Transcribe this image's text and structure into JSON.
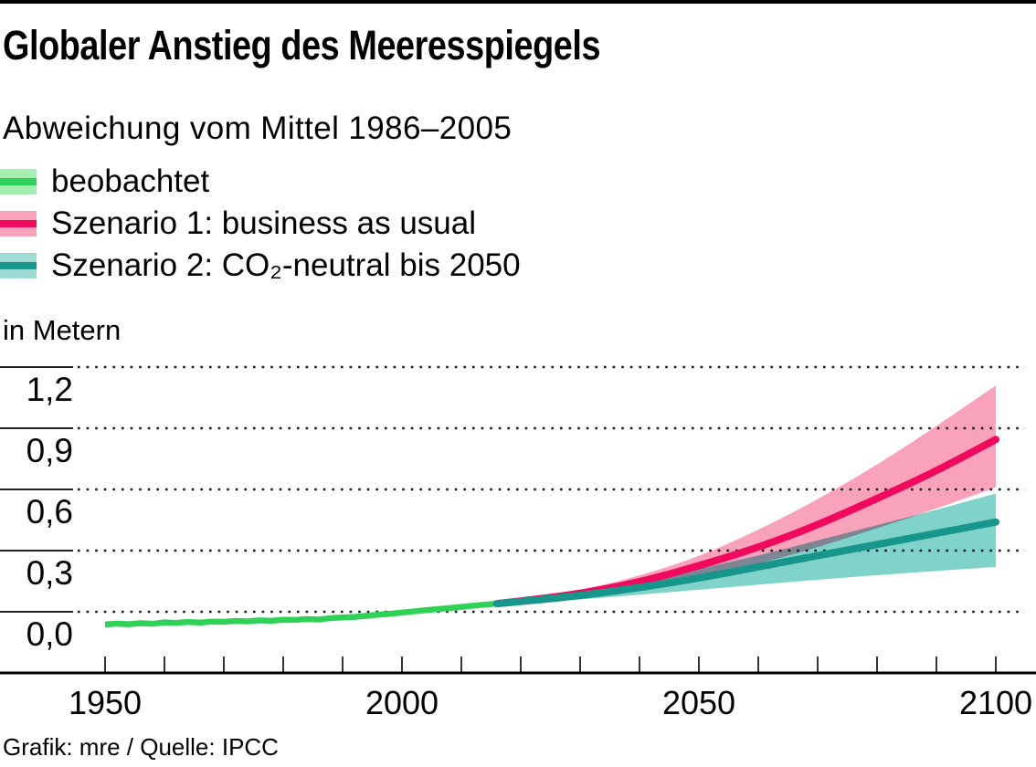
{
  "header": {
    "title": "Globaler Anstieg des Meeresspiegels",
    "subtitle": "Abweichung vom Mittel 1986–2005"
  },
  "axis": {
    "unit_label": "in Metern"
  },
  "footer": {
    "credit": "Grafik: mre / Quelle: IPCC"
  },
  "colors": {
    "top_rule": "#000000",
    "observed_line": "#2fd156",
    "observed_band": "#a6edb2",
    "scenario1_line": "#ef0a5d",
    "scenario1_band": "#f9a2bb",
    "scenario2_line": "#17968c",
    "scenario2_band": "#7fd3ca",
    "legend_scenario2_band": "#9edbd3",
    "grid_dots": "#1c1c1c",
    "axis_line": "#000000"
  },
  "legend": {
    "items": [
      {
        "id": "observed",
        "label": "beobachtet",
        "band_color": "#a6edb2",
        "line_color": "#2fd156"
      },
      {
        "id": "scenario1",
        "label": "Szenario 1: business as usual",
        "band_color": "#f9a2bb",
        "line_color": "#ef0a5d"
      },
      {
        "id": "scenario2",
        "label": "Szenario 2: CO₂-neutral bis 2050",
        "band_color": "#9edbd3",
        "line_color": "#17968c"
      }
    ]
  },
  "chart_data": {
    "type": "line",
    "title": "Globaler Anstieg des Meeresspiegels",
    "subtitle": "Abweichung vom Mittel 1986–2005",
    "ylabel": "in Metern",
    "xlim": [
      1950,
      2100
    ],
    "ylim_gridlines": [
      0.0,
      1.2
    ],
    "grid": "dotted-horizontal",
    "legend_position": "top-left",
    "y_ticks": [
      {
        "label": "1,2",
        "value": 1.2
      },
      {
        "label": "0,9",
        "value": 0.9
      },
      {
        "label": "0,6",
        "value": 0.6
      },
      {
        "label": "0,3",
        "value": 0.3
      },
      {
        "label": "0,0",
        "value": 0.0
      }
    ],
    "x_ticks_labeled": [
      {
        "label": "1950",
        "value": 1950
      },
      {
        "label": "2000",
        "value": 2000
      },
      {
        "label": "2050",
        "value": 2050
      },
      {
        "label": "2100",
        "value": 2100
      }
    ],
    "x_minor_tick_step": 10,
    "series": [
      {
        "name": "beobachtet",
        "role": "observed",
        "band_halfwidth": 0.012,
        "points": [
          [
            1950,
            -0.062
          ],
          [
            1952,
            -0.058
          ],
          [
            1954,
            -0.061
          ],
          [
            1956,
            -0.056
          ],
          [
            1958,
            -0.059
          ],
          [
            1960,
            -0.052
          ],
          [
            1962,
            -0.055
          ],
          [
            1964,
            -0.05
          ],
          [
            1966,
            -0.053
          ],
          [
            1968,
            -0.048
          ],
          [
            1970,
            -0.049
          ],
          [
            1972,
            -0.045
          ],
          [
            1974,
            -0.047
          ],
          [
            1976,
            -0.042
          ],
          [
            1978,
            -0.044
          ],
          [
            1980,
            -0.039
          ],
          [
            1982,
            -0.04
          ],
          [
            1984,
            -0.036
          ],
          [
            1986,
            -0.038
          ],
          [
            1988,
            -0.031
          ],
          [
            1990,
            -0.028
          ],
          [
            1992,
            -0.025
          ],
          [
            1994,
            -0.02
          ],
          [
            1996,
            -0.014
          ],
          [
            1998,
            -0.01
          ],
          [
            2000,
            -0.004
          ],
          [
            2002,
            0.002
          ],
          [
            2004,
            0.008
          ],
          [
            2006,
            0.013
          ],
          [
            2008,
            0.018
          ],
          [
            2010,
            0.024
          ],
          [
            2012,
            0.03
          ],
          [
            2014,
            0.035
          ],
          [
            2016,
            0.04
          ]
        ]
      },
      {
        "name": "Szenario 1: business as usual",
        "role": "scenario1",
        "median": [
          [
            2016,
            0.04
          ],
          [
            2020,
            0.052
          ],
          [
            2030,
            0.088
          ],
          [
            2040,
            0.145
          ],
          [
            2050,
            0.225
          ],
          [
            2060,
            0.315
          ],
          [
            2070,
            0.425
          ],
          [
            2080,
            0.555
          ],
          [
            2090,
            0.69
          ],
          [
            2100,
            0.845
          ]
        ],
        "upper": [
          [
            2016,
            0.046
          ],
          [
            2020,
            0.062
          ],
          [
            2030,
            0.105
          ],
          [
            2040,
            0.175
          ],
          [
            2050,
            0.27
          ],
          [
            2060,
            0.4
          ],
          [
            2070,
            0.55
          ],
          [
            2080,
            0.72
          ],
          [
            2090,
            0.91
          ],
          [
            2100,
            1.11
          ]
        ],
        "lower": [
          [
            2016,
            0.034
          ],
          [
            2020,
            0.044
          ],
          [
            2030,
            0.072
          ],
          [
            2040,
            0.112
          ],
          [
            2050,
            0.168
          ],
          [
            2060,
            0.235
          ],
          [
            2070,
            0.315
          ],
          [
            2080,
            0.41
          ],
          [
            2090,
            0.505
          ],
          [
            2100,
            0.61
          ]
        ]
      },
      {
        "name": "Szenario 2: CO₂-neutral bis 2050",
        "role": "scenario2",
        "median": [
          [
            2016,
            0.04
          ],
          [
            2020,
            0.05
          ],
          [
            2030,
            0.079
          ],
          [
            2040,
            0.118
          ],
          [
            2050,
            0.165
          ],
          [
            2060,
            0.22
          ],
          [
            2070,
            0.275
          ],
          [
            2080,
            0.33
          ],
          [
            2090,
            0.385
          ],
          [
            2100,
            0.44
          ]
        ],
        "upper": [
          [
            2016,
            0.046
          ],
          [
            2020,
            0.06
          ],
          [
            2030,
            0.097
          ],
          [
            2040,
            0.15
          ],
          [
            2050,
            0.21
          ],
          [
            2060,
            0.275
          ],
          [
            2070,
            0.35
          ],
          [
            2080,
            0.425
          ],
          [
            2090,
            0.5
          ],
          [
            2100,
            0.58
          ]
        ],
        "lower": [
          [
            2016,
            0.034
          ],
          [
            2020,
            0.042
          ],
          [
            2030,
            0.06
          ],
          [
            2040,
            0.083
          ],
          [
            2050,
            0.108
          ],
          [
            2060,
            0.133
          ],
          [
            2070,
            0.157
          ],
          [
            2080,
            0.18
          ],
          [
            2090,
            0.2
          ],
          [
            2100,
            0.22
          ]
        ]
      }
    ]
  }
}
